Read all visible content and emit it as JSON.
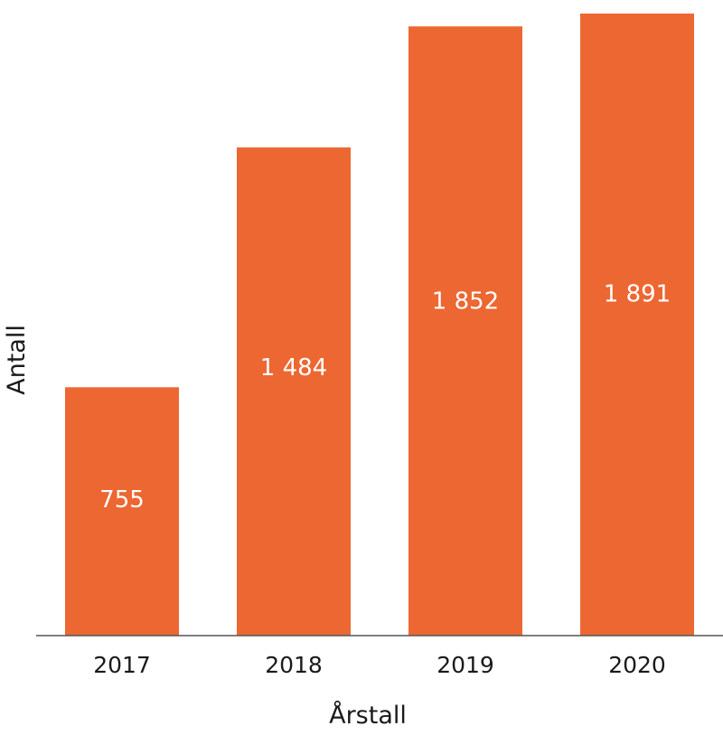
{
  "chart_data": {
    "type": "bar",
    "title": "",
    "categories": [
      "2017",
      "2018",
      "2019",
      "2020"
    ],
    "values": [
      755,
      1484,
      1852,
      1891
    ],
    "data_labels": [
      "755",
      "1 484",
      "1 852",
      "1 891"
    ],
    "xlabel": "Årstall",
    "ylabel": "Antall",
    "ylim": [
      0,
      1891
    ],
    "grid": false,
    "legend": "none",
    "bar_color": "#EC6732",
    "label_color": "#ffffff",
    "axis_color": "#555555"
  }
}
